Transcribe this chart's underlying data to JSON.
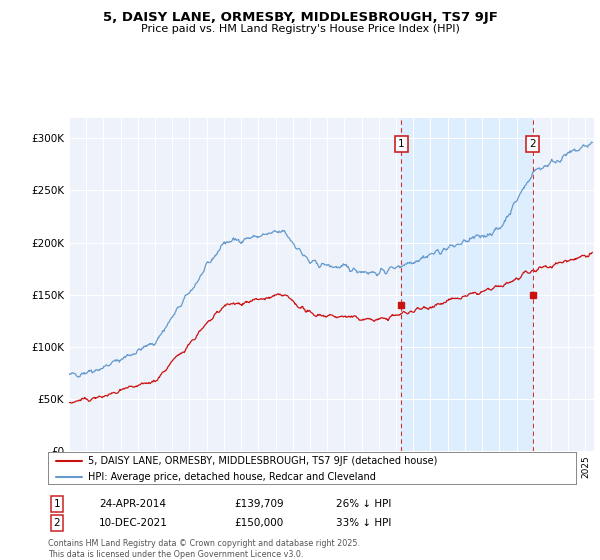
{
  "title": "5, DAISY LANE, ORMESBY, MIDDLESBROUGH, TS7 9JF",
  "subtitle": "Price paid vs. HM Land Registry's House Price Index (HPI)",
  "ylabel_ticks": [
    "£0",
    "£50K",
    "£100K",
    "£150K",
    "£200K",
    "£250K",
    "£300K"
  ],
  "ylim": [
    0,
    320000
  ],
  "xlim_start": 1995.0,
  "xlim_end": 2025.5,
  "hpi_color": "#6699cc",
  "price_color": "#cc1111",
  "shade_color": "#ddeeff",
  "marker1_date": 2014.31,
  "marker1_price": 139709,
  "marker1_text": "24-APR-2014",
  "marker1_pct": "26% ↓ HPI",
  "marker2_date": 2021.94,
  "marker2_price": 150000,
  "marker2_text": "10-DEC-2021",
  "marker2_pct": "33% ↓ HPI",
  "legend_line1": "5, DAISY LANE, ORMESBY, MIDDLESBROUGH, TS7 9JF (detached house)",
  "legend_line2": "HPI: Average price, detached house, Redcar and Cleveland",
  "footer": "Contains HM Land Registry data © Crown copyright and database right 2025.\nThis data is licensed under the Open Government Licence v3.0.",
  "bg_color": "#eef3fb",
  "plot_bg": "#ffffff",
  "grid_color": "#ffffff"
}
